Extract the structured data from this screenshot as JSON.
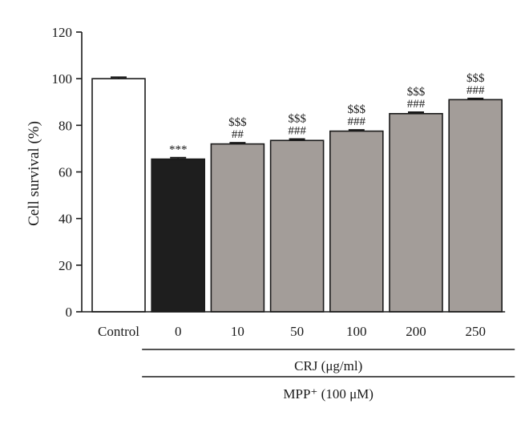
{
  "chart_data": {
    "type": "bar",
    "ylabel": "Cell survival (%)",
    "ylim": [
      0,
      120
    ],
    "yticks": [
      0,
      20,
      40,
      60,
      80,
      100,
      120
    ],
    "categories": [
      "Control",
      "0",
      "10",
      "50",
      "100",
      "200",
      "250"
    ],
    "values": [
      100,
      65.5,
      72,
      73.5,
      77.5,
      85,
      91
    ],
    "errors": [
      0.6,
      0.6,
      0.5,
      0.6,
      0.5,
      0.6,
      0.5
    ],
    "bar_colors": [
      "#ffffff",
      "#1e1e1e",
      "#a39d99",
      "#a39d99",
      "#a39d99",
      "#a39d99",
      "#a39d99"
    ],
    "significance": [
      [],
      [
        "***"
      ],
      [
        "$$$",
        "##"
      ],
      [
        "$$$",
        "###"
      ],
      [
        "$$$",
        "###"
      ],
      [
        "$$$",
        "###"
      ],
      [
        "$$$",
        "###"
      ]
    ],
    "group_labels": [
      {
        "text": "CRJ (μg/ml)",
        "span": [
          1,
          6
        ]
      },
      {
        "text": "MPP⁺ (100 μM)",
        "span": [
          1,
          6
        ]
      }
    ],
    "grid": false
  }
}
